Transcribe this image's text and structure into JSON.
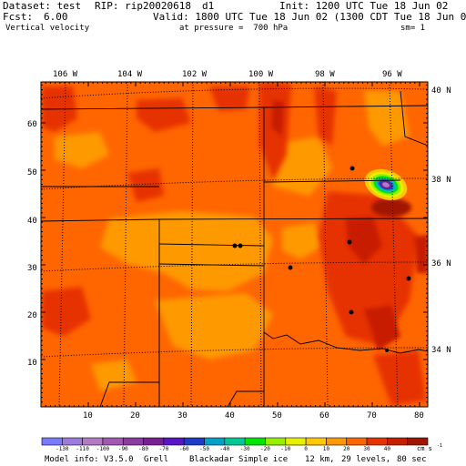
{
  "header": {
    "dataset_label": "Dataset: test",
    "rip_label": "RIP: rip20020618",
    "domain_id": "d1",
    "init_label": "Init: 1200 UTC Tue 18 Jun 02",
    "fcst_label": "Fcst:",
    "fcst_value": "6.00",
    "valid_label": "Valid: 1800 UTC Tue 18 Jun 02 (1300 CDT Tue 18 Jun 02)",
    "field_name": "Vertical velocity",
    "pressure_text": "at pressure =  700 hPa",
    "smoothing_text": "sm= 1"
  },
  "map": {
    "lon_labels_top": [
      "106 W",
      "104 W",
      "102 W",
      "100 W",
      "98 W",
      "96 W"
    ],
    "lat_labels_right": [
      "40 N",
      "38 N",
      "36 N",
      "34 N"
    ],
    "y_axis_ticks": [
      "60",
      "50",
      "40",
      "30",
      "20",
      "10"
    ],
    "x_axis_ticks": [
      "10",
      "20",
      "30",
      "40",
      "50",
      "60",
      "70",
      "80"
    ],
    "colors": {
      "background_field": "#ff6600",
      "weak_up": "#ff9900",
      "moderate_down": "#e63300",
      "strong_down": "#c81e00"
    }
  },
  "colorbar": {
    "values": [
      "-130",
      "-110",
      "-100",
      "-90",
      "-80",
      "-70",
      "-60",
      "-50",
      "-40",
      "-30",
      "-20",
      "-10",
      "0",
      "10",
      "20",
      "30",
      "40"
    ],
    "units": "cm s",
    "units_exponent": "-1",
    "colors": [
      "#7a7aff",
      "#9d7bdc",
      "#b37ac8",
      "#a05ab4",
      "#8c3ca0",
      "#7a1e96",
      "#5a14c8",
      "#1e3cc8",
      "#00a0c8",
      "#00c896",
      "#00e600",
      "#96f000",
      "#e6f000",
      "#ffc800",
      "#ff9900",
      "#ff6600",
      "#e63300",
      "#c81e00",
      "#a01400"
    ]
  },
  "footer": {
    "model_info": "Model info: V3.5.0",
    "cumulus": "Grell",
    "pbl": "Blackadar",
    "microphysics": "Simple ice",
    "resolution": "12 km,",
    "levels": "29 levels,",
    "timestep": "80 sec"
  }
}
